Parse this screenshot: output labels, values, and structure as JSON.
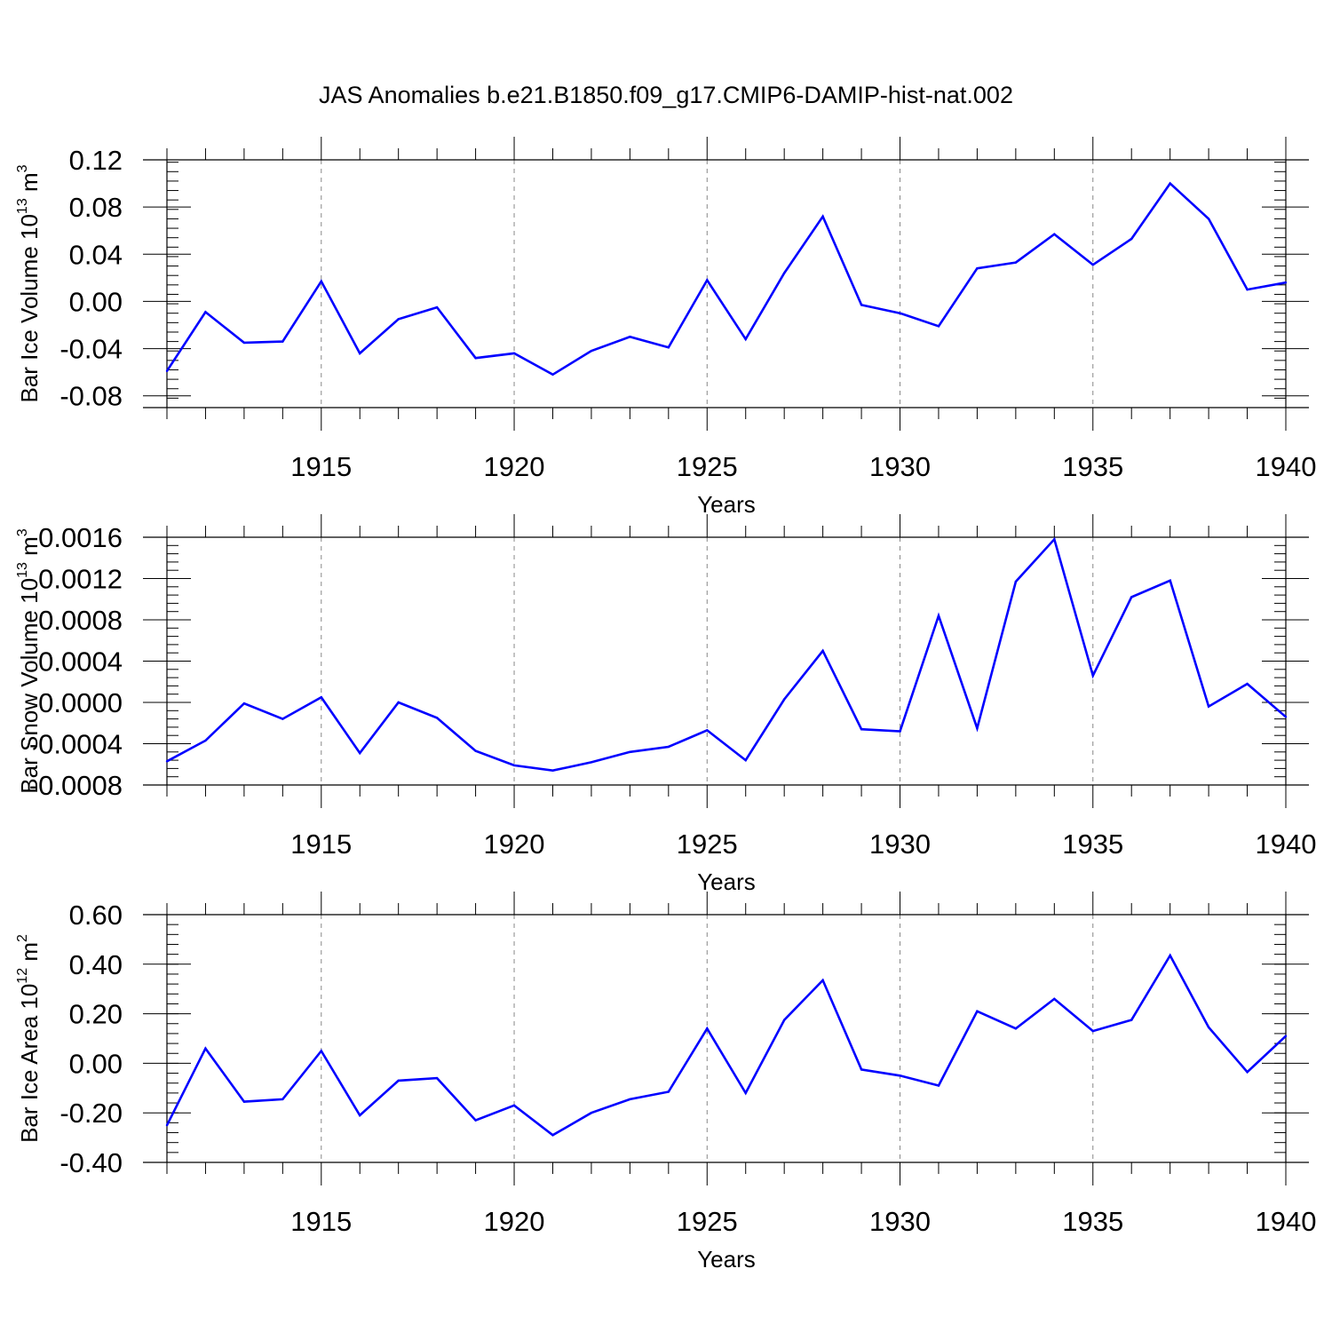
{
  "figure": {
    "title": "JAS Anomalies b.e21.B1850.f09_g17.CMIP6-DAMIP-hist-nat.002",
    "line_color": "#0000ff",
    "grid_color": "#888888"
  },
  "chart_data": [
    {
      "type": "line",
      "title": "JAS Anomalies b.e21.B1850.f09_g17.CMIP6-DAMIP-hist-nat.002",
      "ylabel": "Bar Ice Volume 10",
      "ylabel_exp": "13",
      "ylabel_unit": " m",
      "ylabel_unit_exp": "3",
      "xlabel": "Years",
      "xlim": [
        1911,
        1940
      ],
      "ylim": [
        -0.09,
        0.12
      ],
      "yticks": [
        -0.08,
        -0.04,
        0.0,
        0.04,
        0.08,
        0.12
      ],
      "ytick_labels": [
        "-0.08",
        "-0.04",
        "0.00",
        "0.04",
        "0.08",
        "0.12"
      ],
      "xticks": [
        1915,
        1920,
        1925,
        1930,
        1935,
        1940
      ],
      "xtick_labels": [
        "1915",
        "1920",
        "1925",
        "1930",
        "1935",
        "1940"
      ],
      "grid": "vertical dashed at major x ticks",
      "x": [
        1911,
        1912,
        1913,
        1914,
        1915,
        1916,
        1917,
        1918,
        1919,
        1920,
        1921,
        1922,
        1923,
        1924,
        1925,
        1926,
        1927,
        1928,
        1929,
        1930,
        1931,
        1932,
        1933,
        1934,
        1935,
        1936,
        1937,
        1938,
        1939,
        1940
      ],
      "values": [
        -0.059,
        -0.009,
        -0.035,
        -0.034,
        0.017,
        -0.044,
        -0.015,
        -0.005,
        -0.048,
        -0.044,
        -0.062,
        -0.042,
        -0.03,
        -0.039,
        0.018,
        -0.032,
        0.024,
        0.072,
        -0.003,
        -0.01,
        -0.021,
        0.028,
        0.033,
        0.057,
        0.031,
        0.053,
        0.1,
        0.07,
        0.01,
        0.016
      ]
    },
    {
      "type": "line",
      "ylabel": "Bar Snow Volume 10",
      "ylabel_exp": "13",
      "ylabel_unit": " m",
      "ylabel_unit_exp": "3",
      "xlabel": "Years",
      "xlim": [
        1911,
        1940
      ],
      "ylim": [
        -0.0008,
        0.0016
      ],
      "yticks": [
        -0.0008,
        -0.0004,
        0.0,
        0.0004,
        0.0008,
        0.0012,
        0.0016
      ],
      "ytick_labels": [
        "-0.0008",
        "-0.0004",
        "0.0000",
        "0.0004",
        "0.0008",
        "0.0012",
        "0.0016"
      ],
      "xticks": [
        1915,
        1920,
        1925,
        1930,
        1935,
        1940
      ],
      "xtick_labels": [
        "1915",
        "1920",
        "1925",
        "1930",
        "1935",
        "1940"
      ],
      "grid": "vertical dashed at major x ticks",
      "x": [
        1911,
        1912,
        1913,
        1914,
        1915,
        1916,
        1917,
        1918,
        1919,
        1920,
        1921,
        1922,
        1923,
        1924,
        1925,
        1926,
        1927,
        1928,
        1929,
        1930,
        1931,
        1932,
        1933,
        1934,
        1935,
        1936,
        1937,
        1938,
        1939,
        1940
      ],
      "values": [
        -0.00057,
        -0.00037,
        -1e-05,
        -0.00016,
        5e-05,
        -0.00049,
        0.0,
        -0.00015,
        -0.00047,
        -0.00061,
        -0.00066,
        -0.00058,
        -0.00048,
        -0.00043,
        -0.00027,
        -0.00056,
        3e-05,
        0.0005,
        -0.00026,
        -0.00028,
        0.00084,
        -0.00025,
        0.00117,
        0.00158,
        0.00026,
        0.00102,
        0.00118,
        -4e-05,
        0.00018,
        -0.00014
      ]
    },
    {
      "type": "line",
      "ylabel": "Bar Ice Area 10",
      "ylabel_exp": "12",
      "ylabel_unit": " m",
      "ylabel_unit_exp": "2",
      "xlabel": "Years",
      "xlim": [
        1911,
        1940
      ],
      "ylim": [
        -0.4,
        0.6
      ],
      "yticks": [
        -0.4,
        -0.2,
        0.0,
        0.2,
        0.4,
        0.6
      ],
      "ytick_labels": [
        "-0.40",
        "-0.20",
        "0.00",
        "0.20",
        "0.40",
        "0.60"
      ],
      "xticks": [
        1915,
        1920,
        1925,
        1930,
        1935,
        1940
      ],
      "xtick_labels": [
        "1915",
        "1920",
        "1925",
        "1930",
        "1935",
        "1940"
      ],
      "grid": "vertical dashed at major x ticks",
      "x": [
        1911,
        1912,
        1913,
        1914,
        1915,
        1916,
        1917,
        1918,
        1919,
        1920,
        1921,
        1922,
        1923,
        1924,
        1925,
        1926,
        1927,
        1928,
        1929,
        1930,
        1931,
        1932,
        1933,
        1934,
        1935,
        1936,
        1937,
        1938,
        1939,
        1940
      ],
      "values": [
        -0.25,
        0.06,
        -0.155,
        -0.145,
        0.05,
        -0.21,
        -0.07,
        -0.06,
        -0.23,
        -0.17,
        -0.29,
        -0.2,
        -0.145,
        -0.115,
        0.14,
        -0.12,
        0.175,
        0.335,
        -0.025,
        -0.05,
        -0.09,
        0.21,
        0.14,
        0.26,
        0.13,
        0.175,
        0.435,
        0.145,
        -0.035,
        0.11
      ]
    }
  ]
}
